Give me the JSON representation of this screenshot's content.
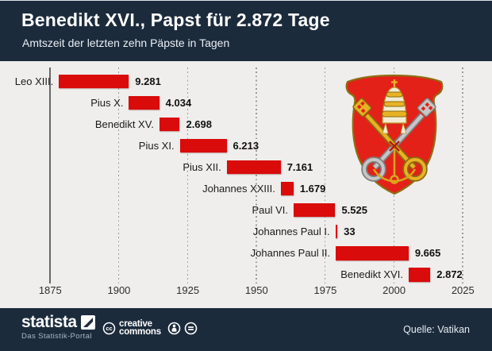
{
  "header": {
    "title": "Benedikt XVI., Papst für 2.872 Tage",
    "subtitle": "Amtszeit der letzten zehn Päpste in Tagen"
  },
  "chart_data": {
    "type": "bar",
    "orientation": "horizontal-timeline",
    "title": "Benedikt XVI., Papst für 2.872 Tage",
    "subtitle": "Amtszeit der letzten zehn Päpste in Tagen",
    "unit": "Tage",
    "x_axis": {
      "range": [
        1875,
        2025
      ],
      "ticks": [
        "1875",
        "1900",
        "1925",
        "1950",
        "1975",
        "2000",
        "2025"
      ],
      "gridlines": "dotted-vertical, solid line at 1875"
    },
    "popes": [
      {
        "name": "Leo XIII.",
        "days": 9281,
        "days_label": "9.281",
        "start_year": 1878.15,
        "end_year": 1903.55
      },
      {
        "name": "Pius X.",
        "days": 4034,
        "days_label": "4.034",
        "start_year": 1903.6,
        "end_year": 1914.63
      },
      {
        "name": "Benedikt XV.",
        "days": 2698,
        "days_label": "2.698",
        "start_year": 1914.67,
        "end_year": 1922.07
      },
      {
        "name": "Pius XI.",
        "days": 6213,
        "days_label": "6.213",
        "start_year": 1922.1,
        "end_year": 1939.11
      },
      {
        "name": "Pius XII.",
        "days": 7161,
        "days_label": "7.161",
        "start_year": 1939.17,
        "end_year": 1958.77
      },
      {
        "name": "Johannes XXIII.",
        "days": 1679,
        "days_label": "1.679",
        "start_year": 1958.82,
        "end_year": 1963.42
      },
      {
        "name": "Paul VI.",
        "days": 5525,
        "days_label": "5.525",
        "start_year": 1963.47,
        "end_year": 1978.6
      },
      {
        "name": "Johannes Paul I.",
        "days": 33,
        "days_label": "33",
        "start_year": 1978.65,
        "end_year": 1978.74
      },
      {
        "name": "Johannes Paul II.",
        "days": 9665,
        "days_label": "9.665",
        "start_year": 1978.8,
        "end_year": 2005.25
      },
      {
        "name": "Benedikt XVI.",
        "days": 2872,
        "days_label": "2.872",
        "start_year": 2005.3,
        "end_year": 2013.16
      }
    ],
    "legend": "none",
    "bar_color": "#d90b0b"
  },
  "colors": {
    "header_bg": "#1c2b3c",
    "chart_bg": "#efeeec",
    "bar": "#d90b0b",
    "shield_red": "#e32119",
    "gold": "#e0a81e",
    "silver": "#bdbdbd"
  },
  "footer": {
    "statista_label": "statista",
    "statista_tagline": "Das Statistik-Portal",
    "cc_line1": "creative",
    "cc_line2": "commons",
    "source": "Quelle: Vatikan"
  }
}
